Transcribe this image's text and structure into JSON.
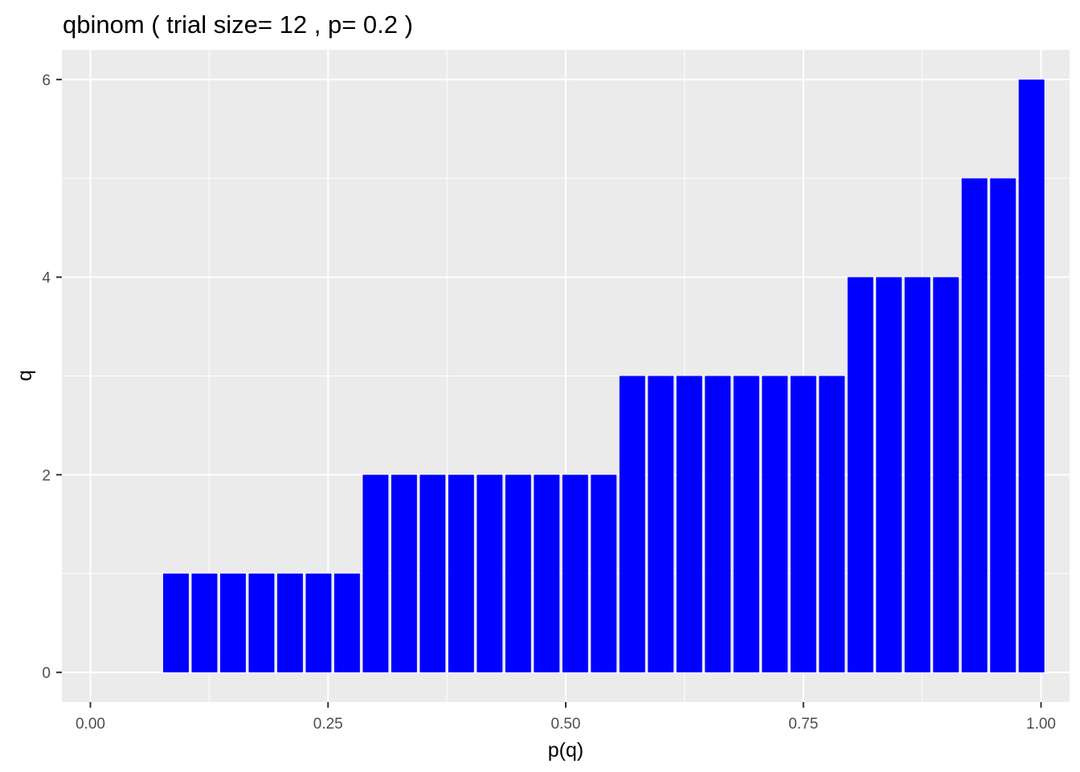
{
  "chart_data": {
    "type": "bar",
    "title": "qbinom ( trial size= 12 , p= 0.2 )",
    "xlabel": "p(q)",
    "ylabel": "q",
    "xlim": [
      -0.03,
      1.03
    ],
    "ylim": [
      -0.3,
      6.3
    ],
    "x_ticks": [
      0.0,
      0.25,
      0.5,
      0.75,
      1.0
    ],
    "x_tick_labels": [
      "0.00",
      "0.25",
      "0.50",
      "0.75",
      "1.00"
    ],
    "y_ticks": [
      0,
      2,
      4,
      6
    ],
    "y_tick_labels": [
      "0",
      "2",
      "4",
      "6"
    ],
    "bar_width": 0.027,
    "grid": true,
    "bar_color": "#0000ff",
    "panel_color": "#ebebeb",
    "x": [
      0.0,
      0.03,
      0.06,
      0.09,
      0.12,
      0.15,
      0.18,
      0.21,
      0.24,
      0.27,
      0.3,
      0.33,
      0.36,
      0.39,
      0.42,
      0.45,
      0.48,
      0.51,
      0.54,
      0.57,
      0.6,
      0.63,
      0.66,
      0.69,
      0.72,
      0.75,
      0.78,
      0.81,
      0.84,
      0.87,
      0.9,
      0.93,
      0.96,
      0.99
    ],
    "values": [
      0,
      0,
      0,
      1,
      1,
      1,
      1,
      1,
      1,
      1,
      2,
      2,
      2,
      2,
      2,
      2,
      2,
      2,
      2,
      3,
      3,
      3,
      3,
      3,
      3,
      3,
      3,
      4,
      4,
      4,
      4,
      5,
      5,
      6
    ]
  }
}
